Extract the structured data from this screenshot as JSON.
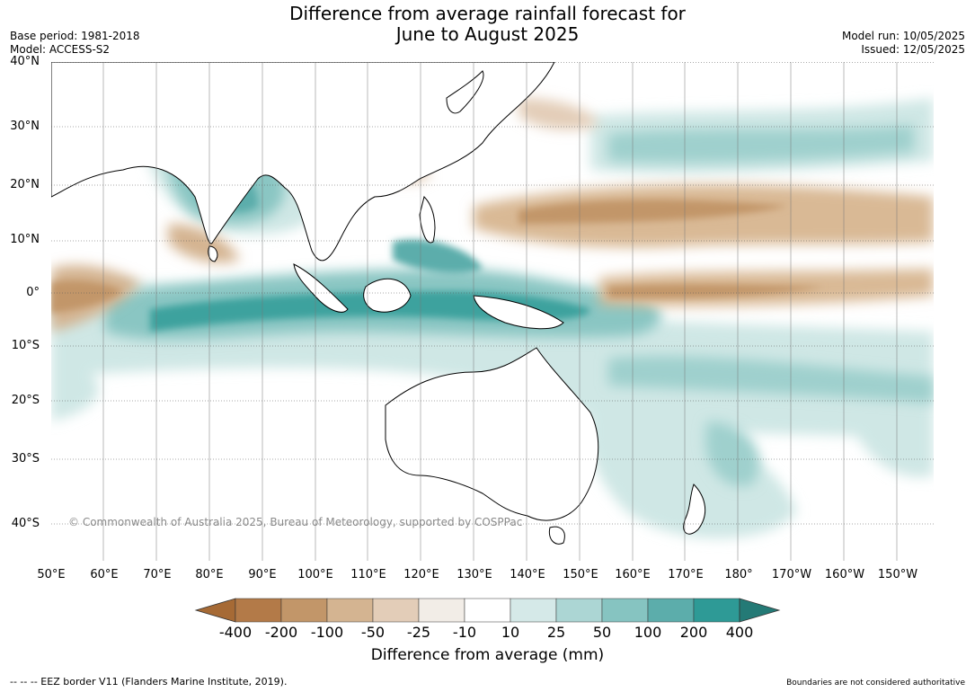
{
  "title_line1": "Difference from average rainfall forecast for",
  "title_line2": "June to August 2025",
  "base_period": "Base period: 1981-2018",
  "model": "Model: ACCESS-S2",
  "model_run": "Model run: 10/05/2025",
  "issued": "Issued: 12/05/2025",
  "lat_labels": [
    "40°N",
    "30°N",
    "20°N",
    "10°N",
    "0°",
    "10°S",
    "20°S",
    "30°S",
    "40°S"
  ],
  "lon_labels": [
    "50°E",
    "60°E",
    "70°E",
    "80°E",
    "90°E",
    "100°E",
    "110°E",
    "120°E",
    "130°E",
    "140°E",
    "150°E",
    "160°E",
    "170°E",
    "180°",
    "170°W",
    "160°W",
    "150°W"
  ],
  "copyright": "© Commonwealth of Australia 2025, Bureau of Meteorology, supported by COSPPac",
  "legend": {
    "ticks": [
      "-400",
      "-200",
      "-100",
      "-50",
      "-25",
      "-10",
      "10",
      "25",
      "50",
      "100",
      "200",
      "400"
    ],
    "colors": [
      "#a66a35",
      "#b37a48",
      "#c29669",
      "#d4b491",
      "#e3cdb8",
      "#f2ede7",
      "#ffffff",
      "#d5e9e8",
      "#acd6d4",
      "#86c4c1",
      "#5cadab",
      "#2e9a96",
      "#247a76"
    ],
    "title": "Difference from average (mm)"
  },
  "footer_left": "--  --  -- EEZ border V11 (Flanders Marine Institute, 2019).",
  "footer_right": "Boundaries are not considered authoritative"
}
